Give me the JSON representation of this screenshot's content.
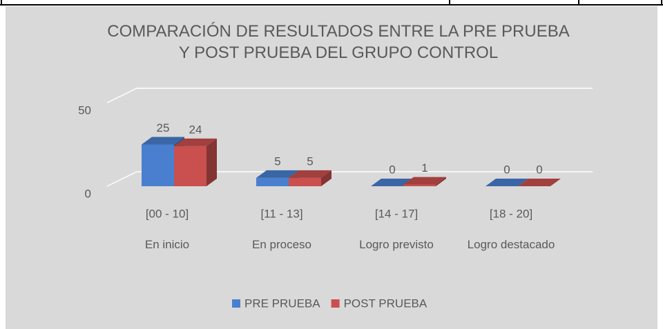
{
  "chart_data": {
    "type": "bar3d",
    "title": "COMPARACIÓN DE RESULTADOS ENTRE LA PRE PRUEBA Y POST PRUEBA DEL GRUPO CONTROL",
    "categories": [
      "[00 - 10]",
      "[11 - 13]",
      "[14 - 17]",
      "[18 - 20]"
    ],
    "category_groups": [
      "En inicio",
      "En proceso",
      "Logro previsto",
      "Logro destacado"
    ],
    "series": [
      {
        "name": "PRE PRUEBA",
        "color": "#4a7fcf",
        "values": [
          25,
          5,
          0,
          0
        ]
      },
      {
        "name": "POST PRUEBA",
        "color": "#c9504e",
        "values": [
          24,
          5,
          1,
          0
        ]
      }
    ],
    "ylim": [
      0,
      50
    ],
    "yticks": [
      0,
      50
    ],
    "grid": true,
    "legend": "bottom"
  }
}
